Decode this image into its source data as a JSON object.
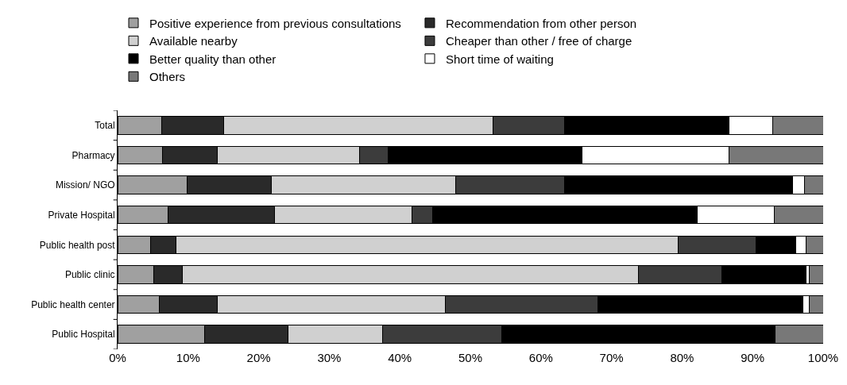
{
  "chart_data": {
    "type": "bar",
    "orientation": "horizontal",
    "stacked": true,
    "categories": [
      "Total",
      "Pharmacy",
      "Mission/ NGO",
      "Private Hospital",
      "Public health post",
      "Public clinic",
      "Public health center",
      "Public Hospital"
    ],
    "series": [
      {
        "name": "Positive experience from previous consultations",
        "color": "#a0a0a0",
        "values": [
          6.2,
          6.4,
          9.8,
          7.2,
          4.7,
          5.1,
          5.9,
          12.3
        ]
      },
      {
        "name": "Recommendation from other person",
        "color": "#2a2a2a",
        "values": [
          8.8,
          7.7,
          12.0,
          15.0,
          3.6,
          4.1,
          8.2,
          11.9
        ]
      },
      {
        "name": "Available nearby",
        "color": "#d0d0d0",
        "values": [
          38.2,
          20.2,
          26.1,
          19.5,
          71.1,
          64.6,
          32.3,
          13.3
        ]
      },
      {
        "name": "Cheaper than other / free of charge",
        "color": "#3c3c3c",
        "values": [
          10.1,
          4.0,
          15.4,
          3.0,
          11.1,
          11.8,
          21.7,
          16.9
        ]
      },
      {
        "name": "Better quality than other",
        "color": "#000000",
        "values": [
          23.4,
          27.5,
          32.4,
          37.5,
          5.6,
          12.0,
          29.0,
          38.8
        ]
      },
      {
        "name": "Short time of waiting",
        "color": "#ffffff",
        "values": [
          6.2,
          20.8,
          1.7,
          10.9,
          1.5,
          0.4,
          0.9,
          0
        ]
      },
      {
        "name": "Others",
        "color": "#787878",
        "values": [
          7.1,
          13.4,
          2.6,
          6.9,
          2.4,
          2.0,
          2.0,
          6.8
        ]
      }
    ],
    "xlim": [
      0,
      100
    ],
    "xticks": [
      {
        "value": 0,
        "label": "0%"
      },
      {
        "value": 10,
        "label": "10%"
      },
      {
        "value": 20,
        "label": "20%"
      },
      {
        "value": 30,
        "label": "30%"
      },
      {
        "value": 40,
        "label": "40%"
      },
      {
        "value": 50,
        "label": "50%"
      },
      {
        "value": 60,
        "label": "60%"
      },
      {
        "value": 70,
        "label": "70%"
      },
      {
        "value": 80,
        "label": "80%"
      },
      {
        "value": 90,
        "label": "90%"
      },
      {
        "value": 100,
        "label": "100%"
      }
    ],
    "legend": "top left"
  }
}
